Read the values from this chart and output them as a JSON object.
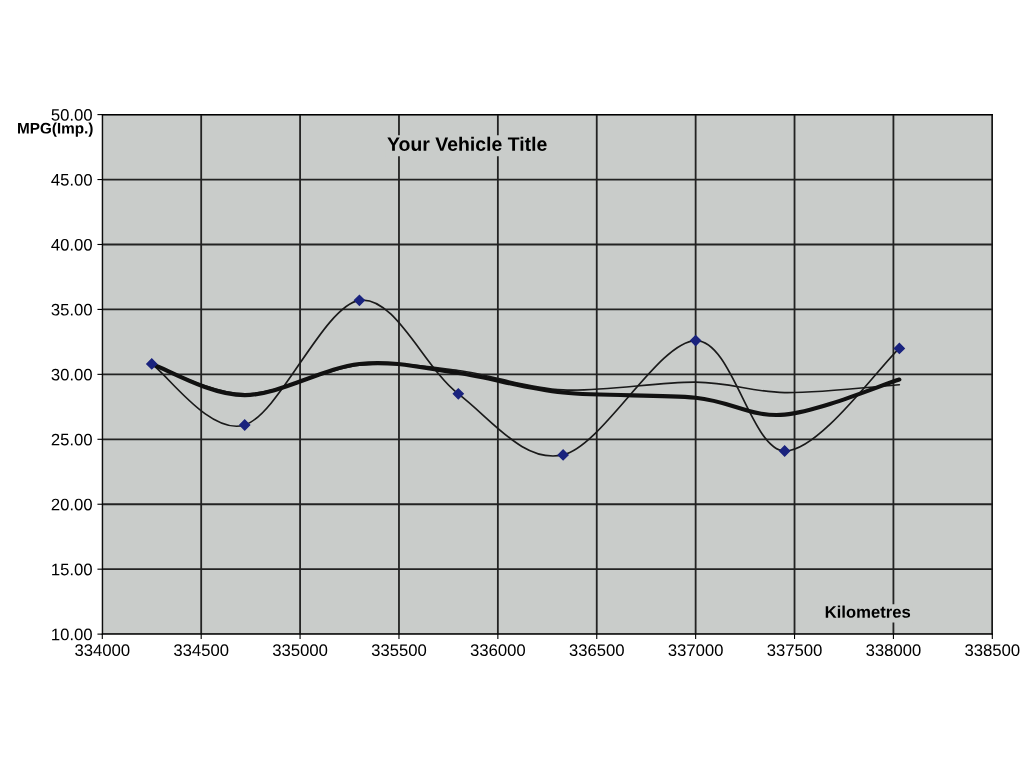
{
  "chart_data": {
    "type": "line",
    "title": "Your Vehicle Title",
    "xlabel": "Kilometres",
    "ylabel": "MPG(Imp.)",
    "xlim": [
      334000,
      338500
    ],
    "xticks": [
      334000,
      334500,
      335000,
      335500,
      336000,
      336500,
      337000,
      337500,
      338000,
      338500
    ],
    "ylim": [
      10,
      50
    ],
    "yticks": [
      {
        "value": 10,
        "label": "10.00"
      },
      {
        "value": 15,
        "label": "15.00"
      },
      {
        "value": 20,
        "label": "20.00"
      },
      {
        "value": 25,
        "label": "25.00"
      },
      {
        "value": 30,
        "label": "30.00"
      },
      {
        "value": 35,
        "label": "35.00"
      },
      {
        "value": 40,
        "label": "40.00"
      },
      {
        "value": 45,
        "label": "45.00"
      },
      {
        "value": 50,
        "label": "50.00"
      }
    ],
    "grid": true,
    "legend": false,
    "series": [
      {
        "color": "#1a1a1a",
        "marker": "diamond",
        "x": [
          334250,
          334720,
          335300,
          335800,
          336330,
          337000,
          337450,
          338030
        ],
        "values": [
          30.8,
          26.1,
          35.7,
          28.5,
          23.8,
          32.6,
          24.1,
          32.0
        ]
      },
      {
        "color": "#1a1a1a",
        "marker": "none",
        "x": [
          334250,
          334720,
          335300,
          335800,
          336330,
          337000,
          337450,
          338030
        ],
        "values": [
          30.8,
          28.5,
          30.7,
          30.3,
          28.8,
          29.4,
          28.6,
          29.2
        ]
      },
      {
        "color": "#111111",
        "marker": "none",
        "x": [
          334250,
          334720,
          335300,
          335800,
          336330,
          337000,
          337450,
          338030
        ],
        "values": [
          30.8,
          28.4,
          30.8,
          30.1,
          28.6,
          28.2,
          26.9,
          29.6
        ]
      }
    ]
  }
}
